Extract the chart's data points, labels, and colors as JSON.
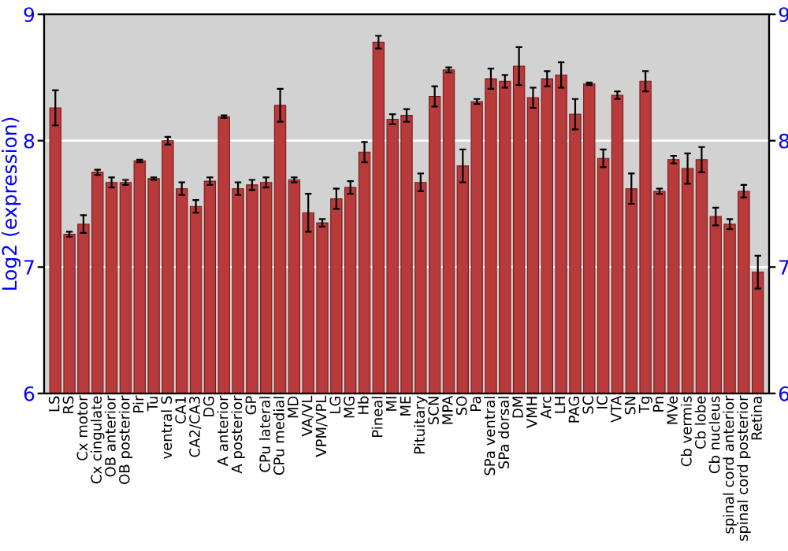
{
  "chart_data": {
    "type": "bar",
    "ylabel": "Log2 (expression)",
    "categories": [
      "LS",
      "RS",
      "Cx motor",
      "Cx cingulate",
      "OB anterior",
      "OB posterior",
      "Pir",
      "Tu",
      "ventral S",
      "CA1",
      "CA2/CA3",
      "DG",
      "A anterior",
      "A posterior",
      "GP",
      "CPu lateral",
      "CPu medial",
      "MD",
      "VA/VL",
      "VPM/VPL",
      "LG",
      "MG",
      "Hb",
      "Pineal",
      "MI",
      "ME",
      "Pituitary",
      "SCN",
      "MPA",
      "SO",
      "Pa",
      "SPa ventral",
      "SPa dorsal",
      "DM",
      "VMH",
      "Arc",
      "LH",
      "PAG",
      "SC",
      "IC",
      "VTA",
      "SN",
      "Tg",
      "Pn",
      "MVe",
      "Cb vermis",
      "Cb lobe",
      "Cb nucleus",
      "spinal cord anterior",
      "spinal cord posterior",
      "Retina"
    ],
    "values": [
      8.26,
      7.26,
      7.34,
      7.75,
      7.67,
      7.67,
      7.84,
      7.7,
      8.0,
      7.62,
      7.48,
      7.68,
      8.19,
      7.62,
      7.65,
      7.67,
      8.28,
      7.69,
      7.43,
      7.35,
      7.54,
      7.63,
      7.91,
      8.78,
      8.17,
      8.2,
      7.67,
      8.35,
      8.56,
      7.8,
      8.31,
      8.49,
      8.47,
      8.59,
      8.34,
      8.49,
      8.52,
      8.21,
      8.45,
      7.86,
      8.36,
      7.62,
      8.47,
      7.6,
      7.85,
      7.78,
      7.85,
      7.4,
      7.34,
      7.6,
      6.96
    ],
    "errors": [
      0.14,
      0.02,
      0.07,
      0.02,
      0.04,
      0.02,
      0.01,
      0.01,
      0.03,
      0.05,
      0.05,
      0.03,
      0.01,
      0.05,
      0.04,
      0.04,
      0.13,
      0.02,
      0.15,
      0.03,
      0.08,
      0.05,
      0.08,
      0.05,
      0.04,
      0.05,
      0.07,
      0.08,
      0.02,
      0.13,
      0.02,
      0.08,
      0.05,
      0.15,
      0.08,
      0.06,
      0.1,
      0.12,
      0.01,
      0.07,
      0.03,
      0.12,
      0.08,
      0.02,
      0.03,
      0.12,
      0.1,
      0.07,
      0.04,
      0.05,
      0.13
    ],
    "color": "#b83a3a",
    "ylim": [
      6,
      9
    ],
    "yticks": [
      6,
      7,
      8,
      9
    ],
    "y2lim": [
      6,
      9
    ],
    "y2ticks": [
      6,
      7,
      8,
      9
    ],
    "grid": "y"
  }
}
